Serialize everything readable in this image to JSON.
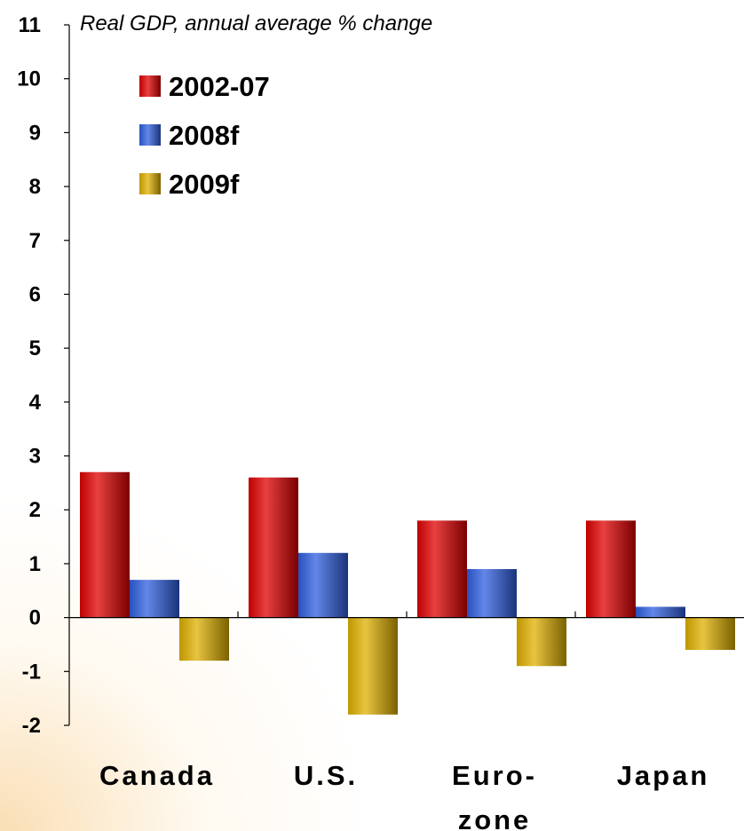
{
  "chart_data": {
    "type": "bar",
    "title": "Real GDP, annual average % change",
    "xlabel": "",
    "ylabel": "",
    "categories": [
      [
        "Canada"
      ],
      [
        "U.S."
      ],
      [
        "Euro-",
        "zone"
      ],
      [
        "Japan"
      ]
    ],
    "series": [
      {
        "name": "2002-07",
        "values": [
          2.7,
          2.6,
          1.8,
          1.8
        ],
        "color": "#e00000"
      },
      {
        "name": "2008f",
        "values": [
          0.7,
          1.2,
          0.9,
          0.2
        ],
        "color": "#2f5fe0"
      },
      {
        "name": "2009f",
        "values": [
          -0.8,
          -1.8,
          -0.9,
          -0.6
        ],
        "color": "#e0b000"
      }
    ],
    "ylim": [
      -2,
      11
    ],
    "yticks": [
      -2,
      -1,
      0,
      1,
      2,
      3,
      4,
      5,
      6,
      7,
      8,
      9,
      10,
      11
    ],
    "grid": false,
    "legend_position": "top-left"
  }
}
